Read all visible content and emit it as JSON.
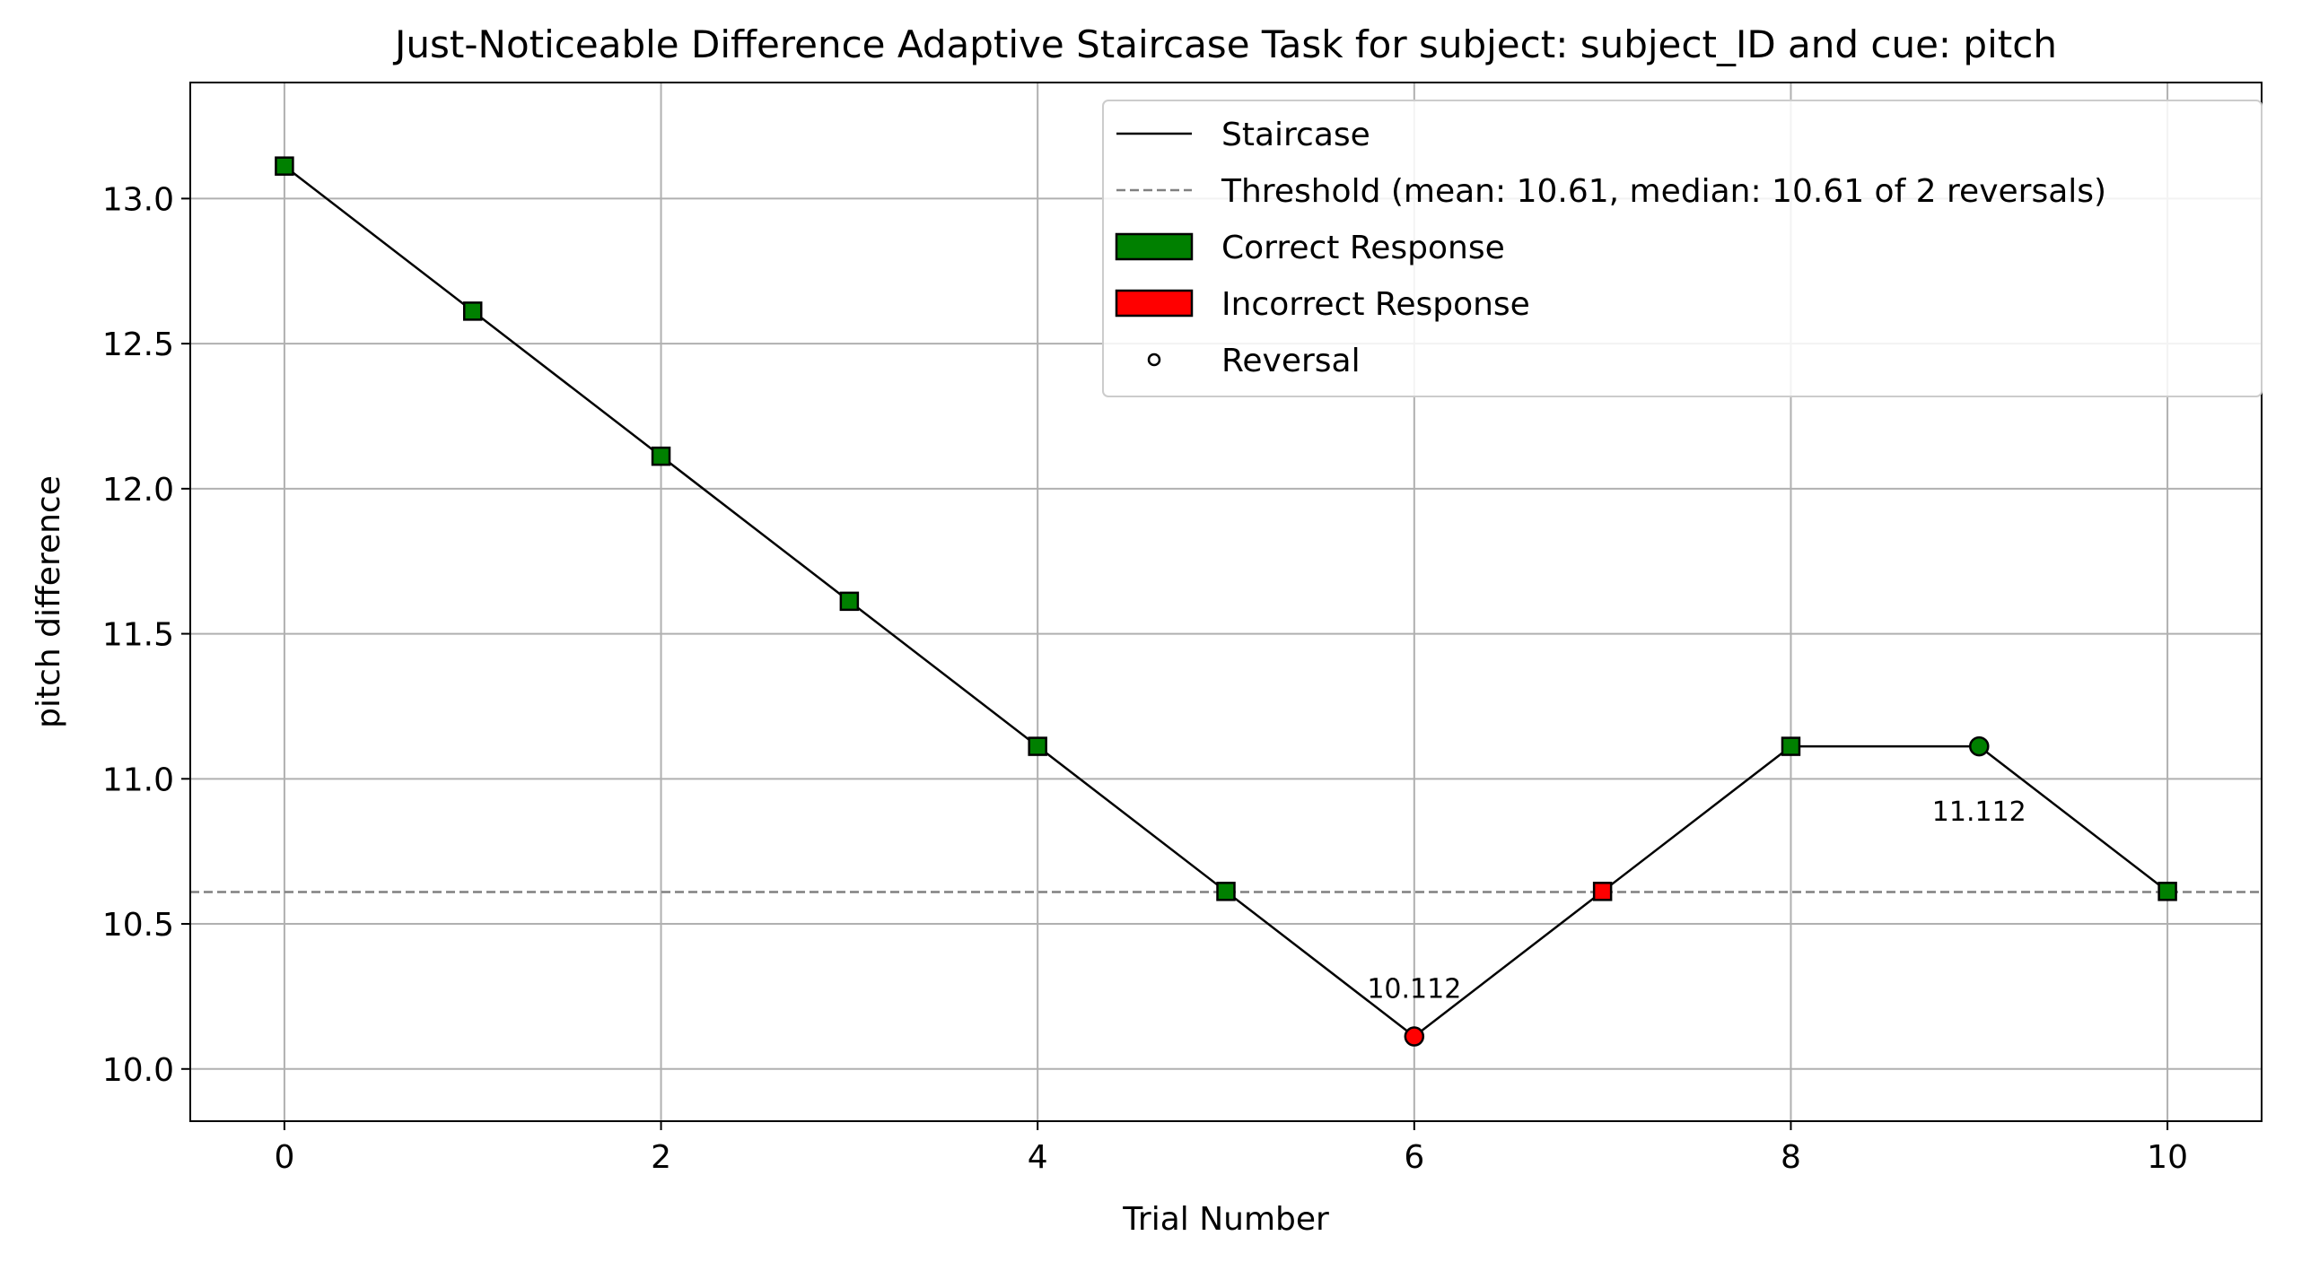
{
  "chart_data": {
    "type": "line",
    "title": "Just-Noticeable Difference Adaptive Staircase Task for subject: subject_ID and cue: pitch",
    "xlabel": "Trial Number",
    "ylabel": "pitch difference",
    "xlim": [
      -0.5,
      10.5
    ],
    "ylim": [
      9.82,
      13.4
    ],
    "xticks": [
      0,
      2,
      4,
      6,
      8,
      10
    ],
    "xtick_labels": [
      "0",
      "2",
      "4",
      "6",
      "8",
      "10"
    ],
    "yticks": [
      10.0,
      10.5,
      11.0,
      11.5,
      12.0,
      12.5,
      13.0
    ],
    "ytick_labels": [
      "10.0",
      "10.5",
      "11.0",
      "11.5",
      "12.0",
      "12.5",
      "13.0"
    ],
    "grid": true,
    "legend_position": "top-right",
    "series": [
      {
        "name": "Staircase",
        "x": [
          0,
          1,
          2,
          3,
          4,
          5,
          6,
          7,
          8,
          9,
          10
        ],
        "y": [
          13.112,
          12.612,
          12.112,
          11.612,
          11.112,
          10.612,
          10.112,
          10.612,
          11.112,
          11.112,
          10.612
        ],
        "responses": [
          "correct",
          "correct",
          "correct",
          "correct",
          "correct",
          "correct",
          "incorrect",
          "incorrect",
          "correct",
          "correct",
          "correct"
        ],
        "reversal": [
          false,
          false,
          false,
          false,
          false,
          false,
          true,
          false,
          false,
          true,
          false
        ],
        "color": "#000000"
      }
    ],
    "threshold": {
      "value": 10.61,
      "color": "#808080"
    },
    "annotations": [
      {
        "x": 6,
        "y": 10.112,
        "text": "10.112"
      },
      {
        "x": 9,
        "y": 11.112,
        "text": "11.112"
      }
    ],
    "legend": [
      {
        "kind": "line",
        "label": "Staircase",
        "color": "#000000"
      },
      {
        "kind": "dashed",
        "label": "Threshold (mean: 10.61, median: 10.61 of 2 reversals)",
        "color": "#808080"
      },
      {
        "kind": "patch",
        "label": "Correct Response",
        "color": "#008000"
      },
      {
        "kind": "patch",
        "label": "Incorrect Response",
        "color": "#ff0000"
      },
      {
        "kind": "circle",
        "label": "Reversal",
        "color": "#000000"
      }
    ],
    "colors": {
      "correct": "#008000",
      "incorrect": "#ff0000",
      "grid": "#b0b0b0"
    }
  }
}
